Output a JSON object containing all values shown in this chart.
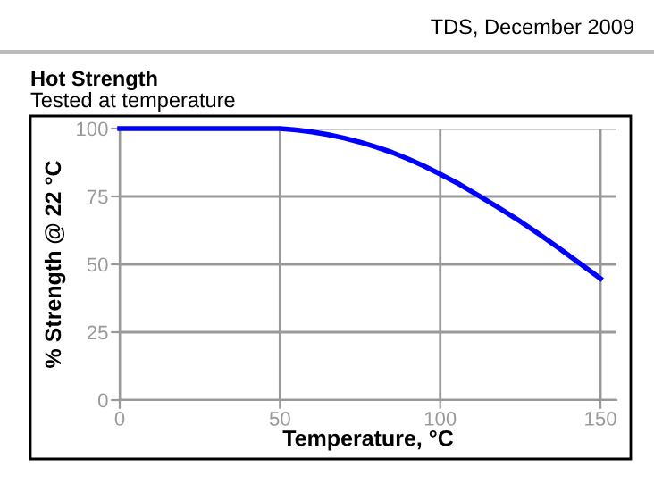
{
  "chart_data": {
    "type": "line",
    "title": "Hot Strength",
    "subtitle": "Tested at temperature",
    "xlabel": "Temperature, °C",
    "ylabel": "% Strength @ 22 °C",
    "annotations": [
      "TDS, December 2009"
    ],
    "x": [
      0,
      25,
      50,
      55,
      60,
      65,
      70,
      75,
      80,
      85,
      90,
      95,
      100,
      106,
      112,
      118,
      125,
      131,
      137,
      143,
      150
    ],
    "series": [
      {
        "color": "#0000ff",
        "values": [
          100,
          100,
          100,
          99.5,
          98.8,
          97.8,
          96.5,
          95,
          93.2,
          91.2,
          88.8,
          86.2,
          83.2,
          79.5,
          75.3,
          71,
          65.8,
          61,
          56,
          50.8,
          44.8
        ]
      }
    ],
    "xlim": [
      0,
      155
    ],
    "ylim": [
      0,
      100
    ],
    "xticks": [
      0,
      50,
      100,
      150
    ],
    "yticks": [
      0,
      25,
      50,
      75,
      100
    ],
    "grid": true,
    "legend": false,
    "marker": "none",
    "line_style": "solid"
  }
}
